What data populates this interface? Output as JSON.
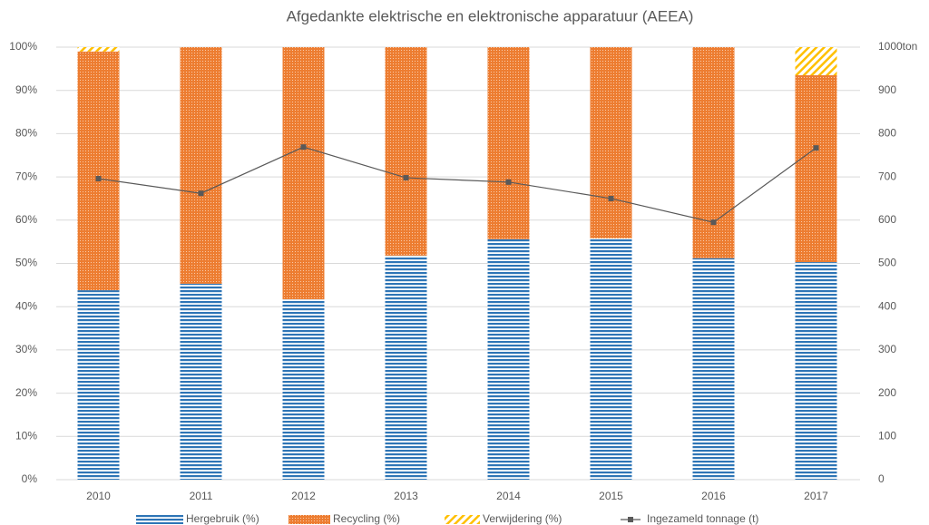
{
  "chart_data": {
    "type": "bar",
    "stacked": true,
    "title": "Afgedankte elektrische en elektronische apparatuur (AEEA)",
    "y2_unit": "ton",
    "categories": [
      "2010",
      "2011",
      "2012",
      "2013",
      "2014",
      "2015",
      "2016",
      "2017"
    ],
    "series": [
      {
        "name": "Hergebruik (%)",
        "color": "#2e75b6",
        "pattern": "horizontal",
        "values": [
          43.8,
          45.3,
          41.7,
          51.8,
          55.6,
          55.8,
          51.2,
          50.3
        ]
      },
      {
        "name": "Recycling (%)",
        "color": "#ed7d31",
        "pattern": "dots",
        "values": [
          55.2,
          54.7,
          58.3,
          48.2,
          44.4,
          44.2,
          48.8,
          43.2
        ]
      },
      {
        "name": "Verwijdering (%)",
        "color": "#ffc000",
        "pattern": "diagonal",
        "values": [
          1.0,
          0,
          0,
          0,
          0,
          0,
          0,
          6.5
        ]
      },
      {
        "name": "Ingezameld tonnage (t)",
        "color": "#595959",
        "type": "line",
        "axis": "y2",
        "values": [
          696,
          662,
          769,
          698,
          688,
          650,
          595,
          767
        ]
      }
    ],
    "ylim": [
      0,
      100
    ],
    "yticks": [
      {
        "value": 0,
        "label": "0%"
      },
      {
        "value": 10,
        "label": "10%"
      },
      {
        "value": 20,
        "label": "20%"
      },
      {
        "value": 30,
        "label": "30%"
      },
      {
        "value": 40,
        "label": "40%"
      },
      {
        "value": 50,
        "label": "50%"
      },
      {
        "value": 60,
        "label": "60%"
      },
      {
        "value": 70,
        "label": "70%"
      },
      {
        "value": 80,
        "label": "80%"
      },
      {
        "value": 90,
        "label": "90%"
      },
      {
        "value": 100,
        "label": "100%"
      }
    ],
    "y2lim": [
      0,
      1000
    ],
    "y2ticks": [
      0,
      100,
      200,
      300,
      400,
      500,
      600,
      700,
      800,
      900,
      1000
    ],
    "grid": true,
    "legend": "bottom"
  }
}
